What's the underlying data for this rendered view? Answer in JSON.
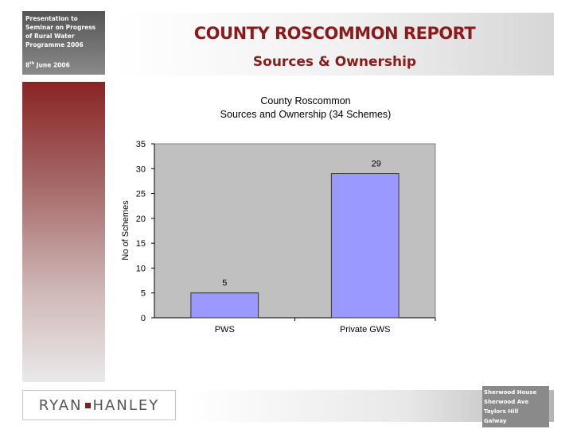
{
  "sidebar": {
    "presentation_lines": [
      "Presentation to",
      "Seminar on Progress",
      "of Rural Water",
      "Programme 2006"
    ],
    "date_day": "8",
    "date_suffix": "th",
    "date_rest": " June 2006"
  },
  "header": {
    "title": "COUNTY ROSCOMMON  REPORT",
    "subtitle": "Sources & Ownership"
  },
  "chart_data": {
    "type": "bar",
    "title_lines": [
      "County Roscommon",
      "Sources and Ownership (34 Schemes)"
    ],
    "categories": [
      "PWS",
      "Private GWS"
    ],
    "values": [
      5,
      29
    ],
    "data_labels": [
      "5",
      "29"
    ],
    "xlabel": "",
    "ylabel": "No of Schemes",
    "ylim": [
      0,
      35
    ],
    "yticks": [
      0,
      5,
      10,
      15,
      20,
      25,
      30,
      35
    ],
    "grid": false,
    "legend": "none",
    "colors": {
      "bar": "#9999ff",
      "plot_bg": "#c0c0c0"
    }
  },
  "footer": {
    "logo_left": "RYAN",
    "logo_right": "HANLEY",
    "address_lines": [
      "Sherwood House",
      "Sherwood Ave",
      "Taylors Hill",
      "Galway"
    ]
  }
}
